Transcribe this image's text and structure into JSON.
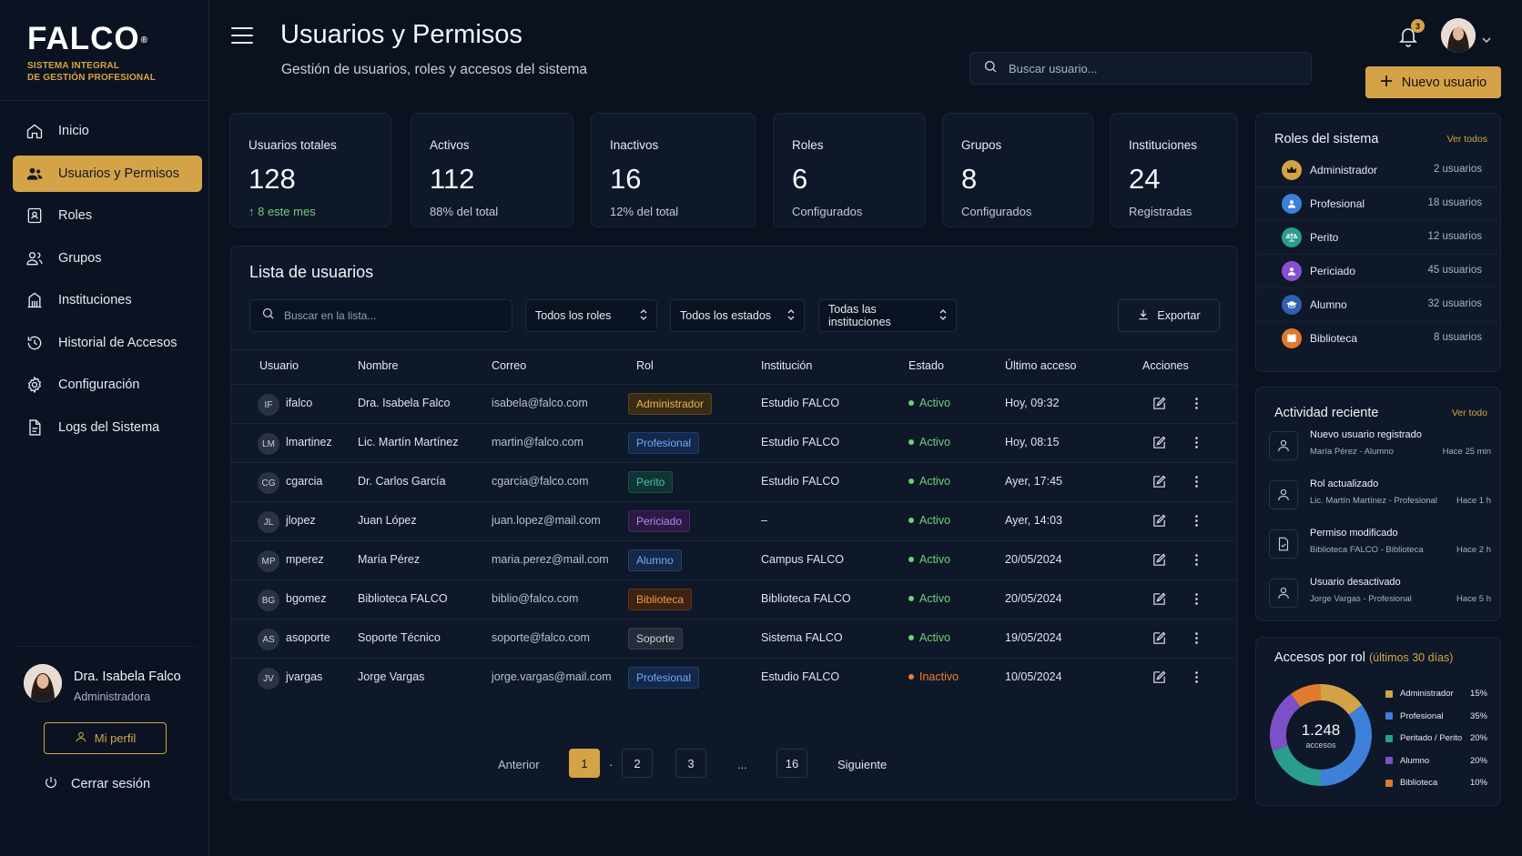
{
  "brand": {
    "name": "FALCO",
    "reg": "®",
    "tagline_1": "SISTEMA INTEGRAL",
    "tagline_2": "DE GESTIÓN PROFESIONAL",
    "accent": "#d4a348"
  },
  "nav": {
    "items": [
      {
        "label": "Inicio",
        "icon": "home-icon"
      },
      {
        "label": "Usuarios y Permisos",
        "icon": "users-icon"
      },
      {
        "label": "Roles",
        "icon": "roles-icon"
      },
      {
        "label": "Grupos",
        "icon": "groups-icon"
      },
      {
        "label": "Instituciones",
        "icon": "institution-icon"
      },
      {
        "label": "Historial de Accesos",
        "icon": "history-icon"
      },
      {
        "label": "Configuración",
        "icon": "gear-icon"
      },
      {
        "label": "Logs del Sistema",
        "icon": "logs-icon"
      }
    ],
    "active": 1
  },
  "current_user": {
    "name": "Dra. Isabela Falco",
    "role": "Administradora",
    "profile_label": "Mi perfil",
    "logout_label": "Cerrar sesión"
  },
  "header": {
    "title": "Usuarios y Permisos",
    "subtitle": "Gestión de usuarios, roles y accesos del sistema",
    "search_placeholder": "Buscar usuario...",
    "notifications": "3",
    "new_user_label": "Nuevo usuario"
  },
  "stats": [
    {
      "label": "Usuarios totales",
      "value": "128",
      "sub": "↑ 8 este mes"
    },
    {
      "label": "Activos",
      "value": "112",
      "sub": "88% del total"
    },
    {
      "label": "Inactivos",
      "value": "16",
      "sub": "12% del total"
    },
    {
      "label": "Roles",
      "value": "6",
      "sub": "Configurados"
    },
    {
      "label": "Grupos",
      "value": "8",
      "sub": "Configurados"
    },
    {
      "label": "Instituciones",
      "value": "24",
      "sub": "Registradas"
    }
  ],
  "user_list": {
    "title": "Lista de usuarios",
    "search_placeholder": "Buscar en la lista...",
    "filters": [
      "Todos los roles",
      "Todos los estados",
      "Todas las instituciones"
    ],
    "export_label": "Exportar",
    "columns": [
      "Usuario",
      "Nombre",
      "Correo",
      "Rol",
      "Institución",
      "Estado",
      "Último acceso",
      "Acciones"
    ],
    "rows": [
      {
        "initials": "IF",
        "user": "ifalco",
        "name": "Dra. Isabela Falco",
        "email": "isabela@falco.com",
        "role": "Administrador",
        "role_key": "admin",
        "institution": "Estudio FALCO",
        "status": "Activo",
        "last": "Hoy, 09:32"
      },
      {
        "initials": "LM",
        "user": "lmartinez",
        "name": "Lic. Martín Martínez",
        "email": "martin@falco.com",
        "role": "Profesional",
        "role_key": "prof",
        "institution": "Estudio FALCO",
        "status": "Activo",
        "last": "Hoy, 08:15"
      },
      {
        "initials": "CG",
        "user": "cgarcia",
        "name": "Dr. Carlos García",
        "email": "cgarcia@falco.com",
        "role": "Perito",
        "role_key": "perito",
        "institution": "Estudio FALCO",
        "status": "Activo",
        "last": "Ayer, 17:45"
      },
      {
        "initials": "JL",
        "user": "jlopez",
        "name": "Juan López",
        "email": "juan.lopez@mail.com",
        "role": "Periciado",
        "role_key": "periciado",
        "institution": "–",
        "status": "Activo",
        "last": "Ayer, 14:03"
      },
      {
        "initials": "MP",
        "user": "mperez",
        "name": "María Pérez",
        "email": "maria.perez@mail.com",
        "role": "Alumno",
        "role_key": "alumno",
        "institution": "Campus FALCO",
        "status": "Activo",
        "last": "20/05/2024"
      },
      {
        "initials": "BG",
        "user": "bgomez",
        "name": "Biblioteca FALCO",
        "email": "biblio@falco.com",
        "role": "Biblioteca",
        "role_key": "biblio",
        "institution": "Biblioteca FALCO",
        "status": "Activo",
        "last": "20/05/2024"
      },
      {
        "initials": "AS",
        "user": "asoporte",
        "name": "Soporte Técnico",
        "email": "soporte@falco.com",
        "role": "Soporte",
        "role_key": "soporte",
        "institution": "Sistema FALCO",
        "status": "Activo",
        "last": "19/05/2024"
      },
      {
        "initials": "JV",
        "user": "jvargas",
        "name": "Jorge Vargas",
        "email": "jorge.vargas@mail.com",
        "role": "Profesional",
        "role_key": "prof",
        "institution": "Estudio FALCO",
        "status": "Inactivo",
        "last": "10/05/2024"
      }
    ],
    "pagination": {
      "prev": "Anterior",
      "next": "Siguiente",
      "pages": [
        "1",
        "2",
        "3",
        "...",
        "16"
      ],
      "current": "1",
      "sep": "·"
    }
  },
  "roles_panel": {
    "title": "Roles del sistema",
    "link": "Ver todos",
    "roles": [
      {
        "name": "Administrador",
        "count": "2 usuarios",
        "icon": "crown-icon",
        "color": "#d4a348"
      },
      {
        "name": "Profesional",
        "count": "18 usuarios",
        "icon": "person-icon",
        "color": "#3d7fd9"
      },
      {
        "name": "Perito",
        "count": "12 usuarios",
        "icon": "scale-icon",
        "color": "#2a9d8f"
      },
      {
        "name": "Periciado",
        "count": "45 usuarios",
        "icon": "person-icon",
        "color": "#8a4fd0"
      },
      {
        "name": "Alumno",
        "count": "32 usuarios",
        "icon": "graduation-icon",
        "color": "#2f5fb0"
      },
      {
        "name": "Biblioteca",
        "count": "8 usuarios",
        "icon": "book-icon",
        "color": "#e07a2e"
      }
    ]
  },
  "activity_panel": {
    "title": "Actividad reciente",
    "link": "Ver todo",
    "items": [
      {
        "title": "Nuevo usuario registrado",
        "desc": "María Pérez - Alumno",
        "time": "Hace 25 min",
        "icon": "user-icon"
      },
      {
        "title": "Rol actualizado",
        "desc": "Lic. Martín Martínez - Profesional",
        "time": "Hace 1 h",
        "icon": "user-icon"
      },
      {
        "title": "Permiso modificado",
        "desc": "Biblioteca FALCO - Biblioteca",
        "time": "Hace 2 h",
        "icon": "document-icon"
      },
      {
        "title": "Usuario desactivado",
        "desc": "Jorge Vargas - Profesional",
        "time": "Hace 5 h",
        "icon": "user-icon"
      }
    ]
  },
  "access_chart": {
    "title": "Accesos por rol",
    "period": "(últimos 30 días)",
    "total": "1.248",
    "total_label": "accesos"
  },
  "chart_data": {
    "type": "pie",
    "title": "Accesos por rol",
    "categories": [
      "Administrador",
      "Profesional",
      "Peritado / Perito",
      "Alumno",
      "Biblioteca"
    ],
    "values": [
      15,
      35,
      20,
      20,
      10
    ],
    "labels": [
      "15%",
      "35%",
      "20%",
      "20%",
      "10%"
    ],
    "colors": [
      "#d4a348",
      "#3d7fd9",
      "#2a9d8f",
      "#7d4fc9",
      "#e07a2e"
    ],
    "legend": "right"
  }
}
